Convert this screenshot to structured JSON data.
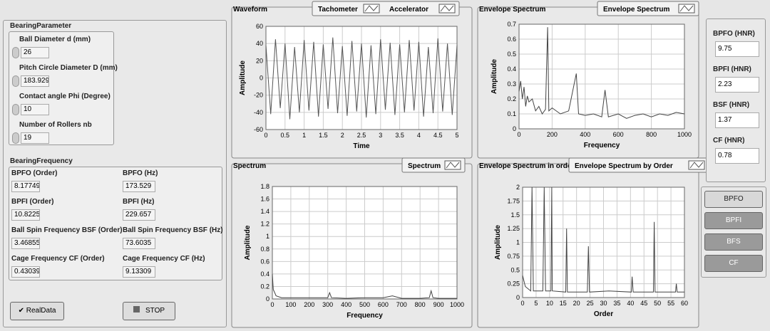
{
  "bearing_parameter": {
    "title": "BearingParameter",
    "fields": [
      {
        "label": "Ball Diameter d (mm)",
        "value": 26
      },
      {
        "label": "Pitch Circle Diameter D (mm)",
        "value": 183.929
      },
      {
        "label": "Contact angle Phi (Degree)",
        "value": 10
      },
      {
        "label": "Number of Rollers nb",
        "value": 19
      }
    ]
  },
  "bearing_frequency": {
    "title": "BearingFrequency",
    "fields": [
      {
        "label": "BPFO (Order)",
        "value": 8.17749
      },
      {
        "label": "BPFO (Hz)",
        "value": 173.529
      },
      {
        "label": "BPFI (Order)",
        "value": 10.8225
      },
      {
        "label": "BPFI (Hz)",
        "value": 229.657
      },
      {
        "label": "Ball Spin Frequency BSF (Order)",
        "value": 3.46855
      },
      {
        "label": "Ball Spin Frequency BSF (Hz)",
        "value": 73.6035
      },
      {
        "label": "Cage Frequency CF (Order)",
        "value": 0.430394
      },
      {
        "label": "Cage Frequency CF (Hz)",
        "value": 9.13309
      }
    ]
  },
  "controls": {
    "real_data": "RealData",
    "stop": "STOP"
  },
  "hnr": [
    {
      "label": "BPFO (HNR)",
      "value": 9.75
    },
    {
      "label": "BPFI (HNR)",
      "value": 2.23
    },
    {
      "label": "BSF (HNR)",
      "value": 1.37
    },
    {
      "label": "CF (HNR)",
      "value": 0.78
    }
  ],
  "selector_buttons": [
    "BPFO",
    "BPFI",
    "BFS",
    "CF"
  ],
  "charts": [
    {
      "type": "line",
      "title": "Waveform",
      "legend": [
        "Tachometer",
        "Accelerator"
      ],
      "xlabel": "Time",
      "ylabel": "Amplitude",
      "xlim": [
        0,
        5
      ],
      "ylim": [
        -60,
        60
      ],
      "xticks": [
        0,
        0.5,
        1,
        1.5,
        2,
        2.5,
        3,
        3.5,
        4,
        4.5,
        5
      ],
      "yticks": [
        -60,
        -40,
        -20,
        0,
        20,
        40,
        60
      ],
      "grid": true,
      "color": "#555555",
      "x": [
        0,
        0.125,
        0.25,
        0.375,
        0.5,
        0.625,
        0.75,
        0.875,
        1,
        1.125,
        1.25,
        1.375,
        1.5,
        1.625,
        1.75,
        1.875,
        2,
        2.125,
        2.25,
        2.375,
        2.5,
        2.625,
        2.75,
        2.875,
        3,
        3.125,
        3.25,
        3.375,
        3.5,
        3.625,
        3.75,
        3.875,
        4,
        4.125,
        4.25,
        4.375,
        4.5,
        4.625,
        4.75,
        4.875,
        5
      ],
      "values": [
        38,
        -42,
        45,
        -35,
        40,
        -48,
        36,
        -40,
        44,
        -38,
        42,
        -45,
        39,
        -36,
        47,
        -41,
        37,
        -44,
        43,
        -39,
        40,
        -46,
        38,
        -42,
        45,
        -37,
        41,
        -43,
        39,
        -40,
        44,
        -38,
        42,
        -45,
        36,
        -41,
        46,
        -39,
        40,
        -43,
        38
      ]
    },
    {
      "type": "line",
      "title": "Envelope Spectrum",
      "legend": [
        "Envelope Spectrum"
      ],
      "xlabel": "Frequency",
      "ylabel": "Amplitude",
      "xlim": [
        0,
        1000
      ],
      "ylim": [
        0,
        0.7
      ],
      "xticks": [
        0,
        200,
        400,
        600,
        800,
        1000
      ],
      "yticks": [
        0,
        0.1,
        0.2,
        0.3,
        0.4,
        0.5,
        0.6,
        0.7
      ],
      "grid": true,
      "color": "#444444",
      "x": [
        0,
        10,
        20,
        30,
        40,
        50,
        60,
        80,
        100,
        120,
        140,
        160,
        173,
        180,
        200,
        250,
        300,
        346,
        360,
        400,
        450,
        500,
        520,
        540,
        600,
        650,
        700,
        750,
        800,
        850,
        900,
        950,
        1000
      ],
      "values": [
        0.25,
        0.32,
        0.2,
        0.28,
        0.15,
        0.22,
        0.18,
        0.2,
        0.12,
        0.15,
        0.1,
        0.13,
        0.68,
        0.12,
        0.14,
        0.1,
        0.12,
        0.37,
        0.1,
        0.09,
        0.1,
        0.08,
        0.26,
        0.08,
        0.1,
        0.07,
        0.09,
        0.1,
        0.08,
        0.1,
        0.09,
        0.11,
        0.1
      ]
    },
    {
      "type": "line",
      "title": "Spectrum",
      "legend": [
        "Spectrum"
      ],
      "xlabel": "Frequency",
      "ylabel": "Amplitude",
      "xlim": [
        0,
        1000
      ],
      "ylim": [
        0,
        1.8
      ],
      "xticks": [
        0,
        100,
        200,
        300,
        400,
        500,
        600,
        700,
        800,
        900,
        1000
      ],
      "yticks": [
        0,
        0.2,
        0.4,
        0.6,
        0.8,
        1,
        1.2,
        1.4,
        1.6,
        1.8
      ],
      "grid": true,
      "color": "#444444",
      "x": [
        0,
        5,
        10,
        20,
        50,
        100,
        150,
        200,
        250,
        300,
        310,
        320,
        400,
        500,
        600,
        650,
        700,
        800,
        850,
        860,
        870,
        900,
        1000
      ],
      "values": [
        0.4,
        0.15,
        0.12,
        0.05,
        0.02,
        0.02,
        0.02,
        0.02,
        0.02,
        0.02,
        0.1,
        0.02,
        0.01,
        0.02,
        0.02,
        0.05,
        0.01,
        0.01,
        0.02,
        0.13,
        0.02,
        0.01,
        0.01
      ]
    },
    {
      "type": "line",
      "title": "Envelope Spectrum in order",
      "legend": [
        "Envelope Spectrum by Order"
      ],
      "xlabel": "Order",
      "ylabel": "Amplitude",
      "xlim": [
        0,
        60
      ],
      "ylim": [
        0,
        2
      ],
      "xticks": [
        0,
        5,
        10,
        15,
        20,
        25,
        30,
        35,
        40,
        45,
        50,
        55,
        60
      ],
      "yticks": [
        0,
        0.25,
        0.5,
        0.75,
        1,
        1.25,
        1.5,
        1.75,
        2
      ],
      "grid": true,
      "color": "#444444",
      "x": [
        0,
        1,
        3,
        3.5,
        4,
        7.5,
        8,
        8.5,
        10.5,
        10.8,
        11,
        16,
        16.3,
        16.6,
        24,
        24.4,
        24.8,
        32,
        40.3,
        40.6,
        41,
        48.5,
        48.8,
        49.1,
        56.7,
        57,
        57.3,
        60
      ],
      "values": [
        0.4,
        0.2,
        0.12,
        2,
        0.12,
        0.12,
        2,
        0.12,
        0.12,
        2,
        0.12,
        0.1,
        1.25,
        0.1,
        0.1,
        0.93,
        0.1,
        0.12,
        0.1,
        0.38,
        0.1,
        0.1,
        1.37,
        0.1,
        0.1,
        0.25,
        0.1,
        0.1
      ]
    }
  ]
}
